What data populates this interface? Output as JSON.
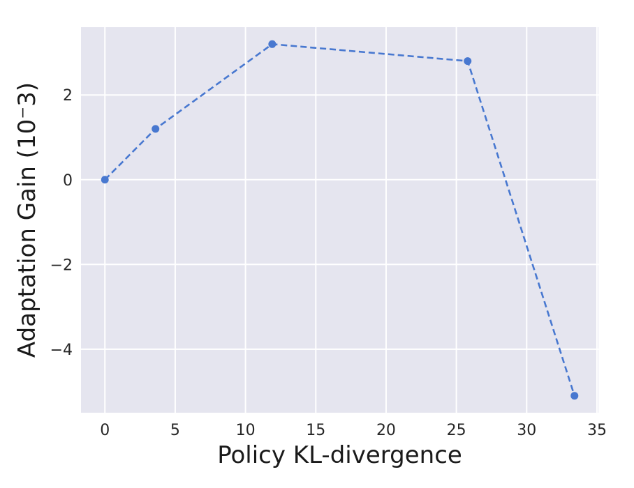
{
  "chart_data": {
    "type": "line",
    "xlabel": "Policy KL-divergence",
    "ylabel": "Adaptation Gain (10⁻3)",
    "xlim": [
      -1.7,
      35.1
    ],
    "ylim": [
      -5.5,
      3.6
    ],
    "xticks": [
      0,
      5,
      10,
      15,
      20,
      25,
      30,
      35
    ],
    "yticks": [
      2,
      0,
      -2,
      -4
    ],
    "xtick_labels": [
      "0",
      "5",
      "10",
      "15",
      "20",
      "25",
      "30",
      "35"
    ],
    "ytick_labels": [
      "2",
      "0",
      "−2",
      "−4"
    ],
    "grid": true,
    "legend": "none",
    "series": [
      {
        "color": "#4878d0",
        "line_style": "dashed",
        "marker": "circle",
        "x": [
          0,
          3.6,
          11.9,
          25.8,
          33.4
        ],
        "y": [
          0,
          1.2,
          3.2,
          2.8,
          -5.1
        ]
      }
    ]
  },
  "style": {
    "plot_background": "#e5e5ef",
    "grid_color": "#ffffff"
  }
}
